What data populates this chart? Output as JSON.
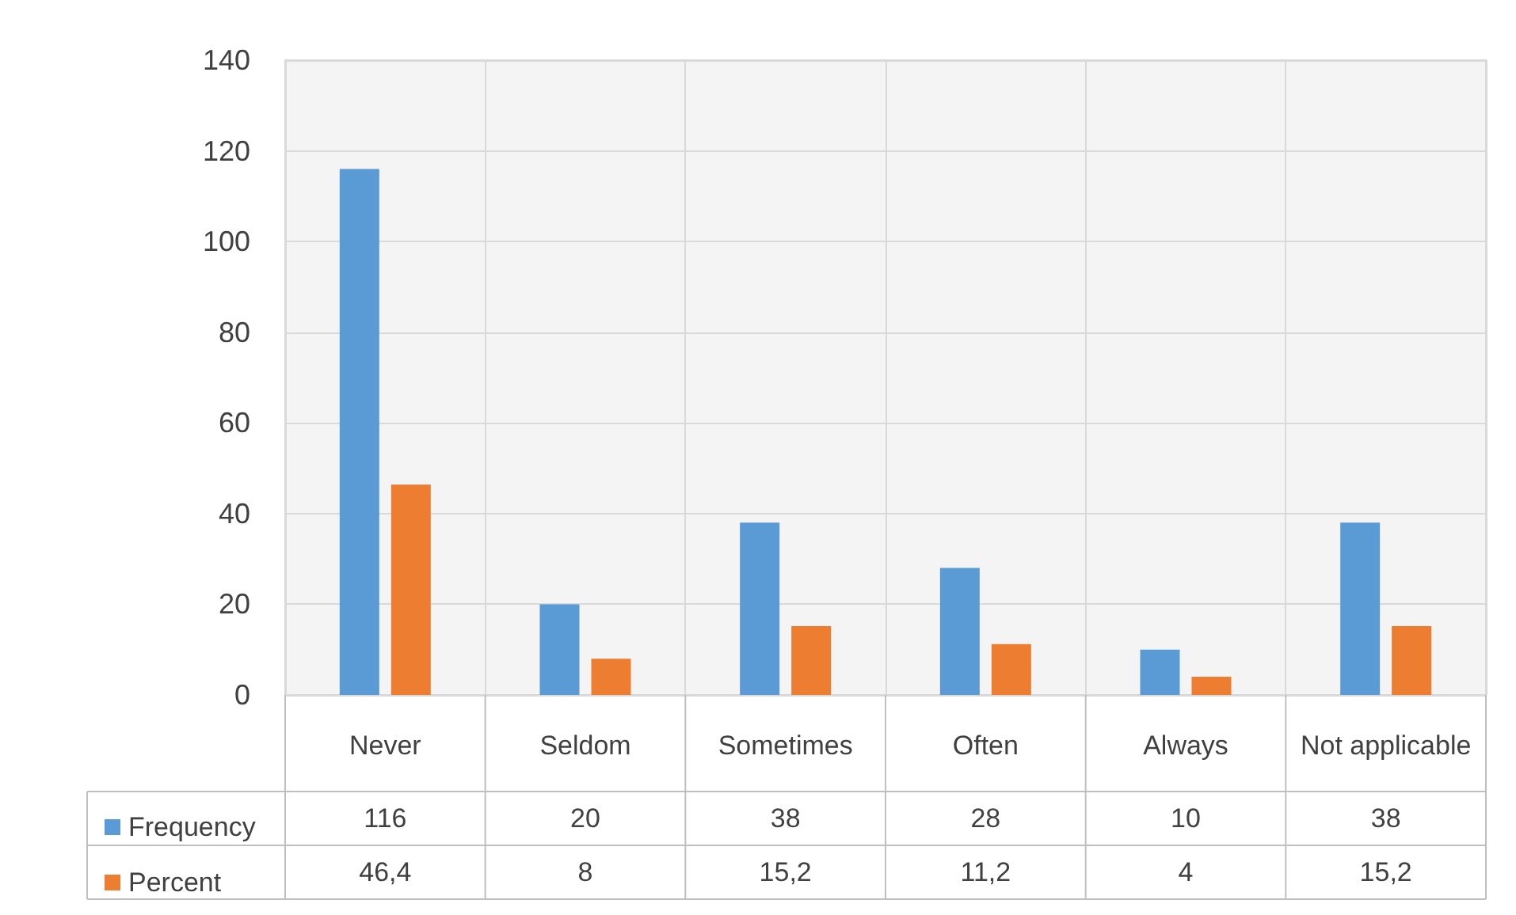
{
  "chart_data": {
    "type": "bar",
    "categories": [
      "Never",
      "Seldom",
      "Sometimes",
      "Often",
      "Always",
      "Not applicable"
    ],
    "series": [
      {
        "name": "Frequency",
        "color": "#5b9bd5",
        "values": [
          116,
          20,
          38,
          28,
          10,
          38
        ],
        "value_labels": [
          "116",
          "20",
          "38",
          "28",
          "10",
          "38"
        ]
      },
      {
        "name": "Percent",
        "color": "#ed7d31",
        "values": [
          46.4,
          8,
          15.2,
          11.2,
          4,
          15.2
        ],
        "value_labels": [
          "46,4",
          "8",
          "15,2",
          "11,2",
          "4",
          "15,2"
        ]
      }
    ],
    "ylim": [
      0,
      140
    ],
    "yticks": [
      0,
      20,
      40,
      60,
      80,
      100,
      120,
      140
    ],
    "grid": true,
    "legend": "bottom left"
  }
}
